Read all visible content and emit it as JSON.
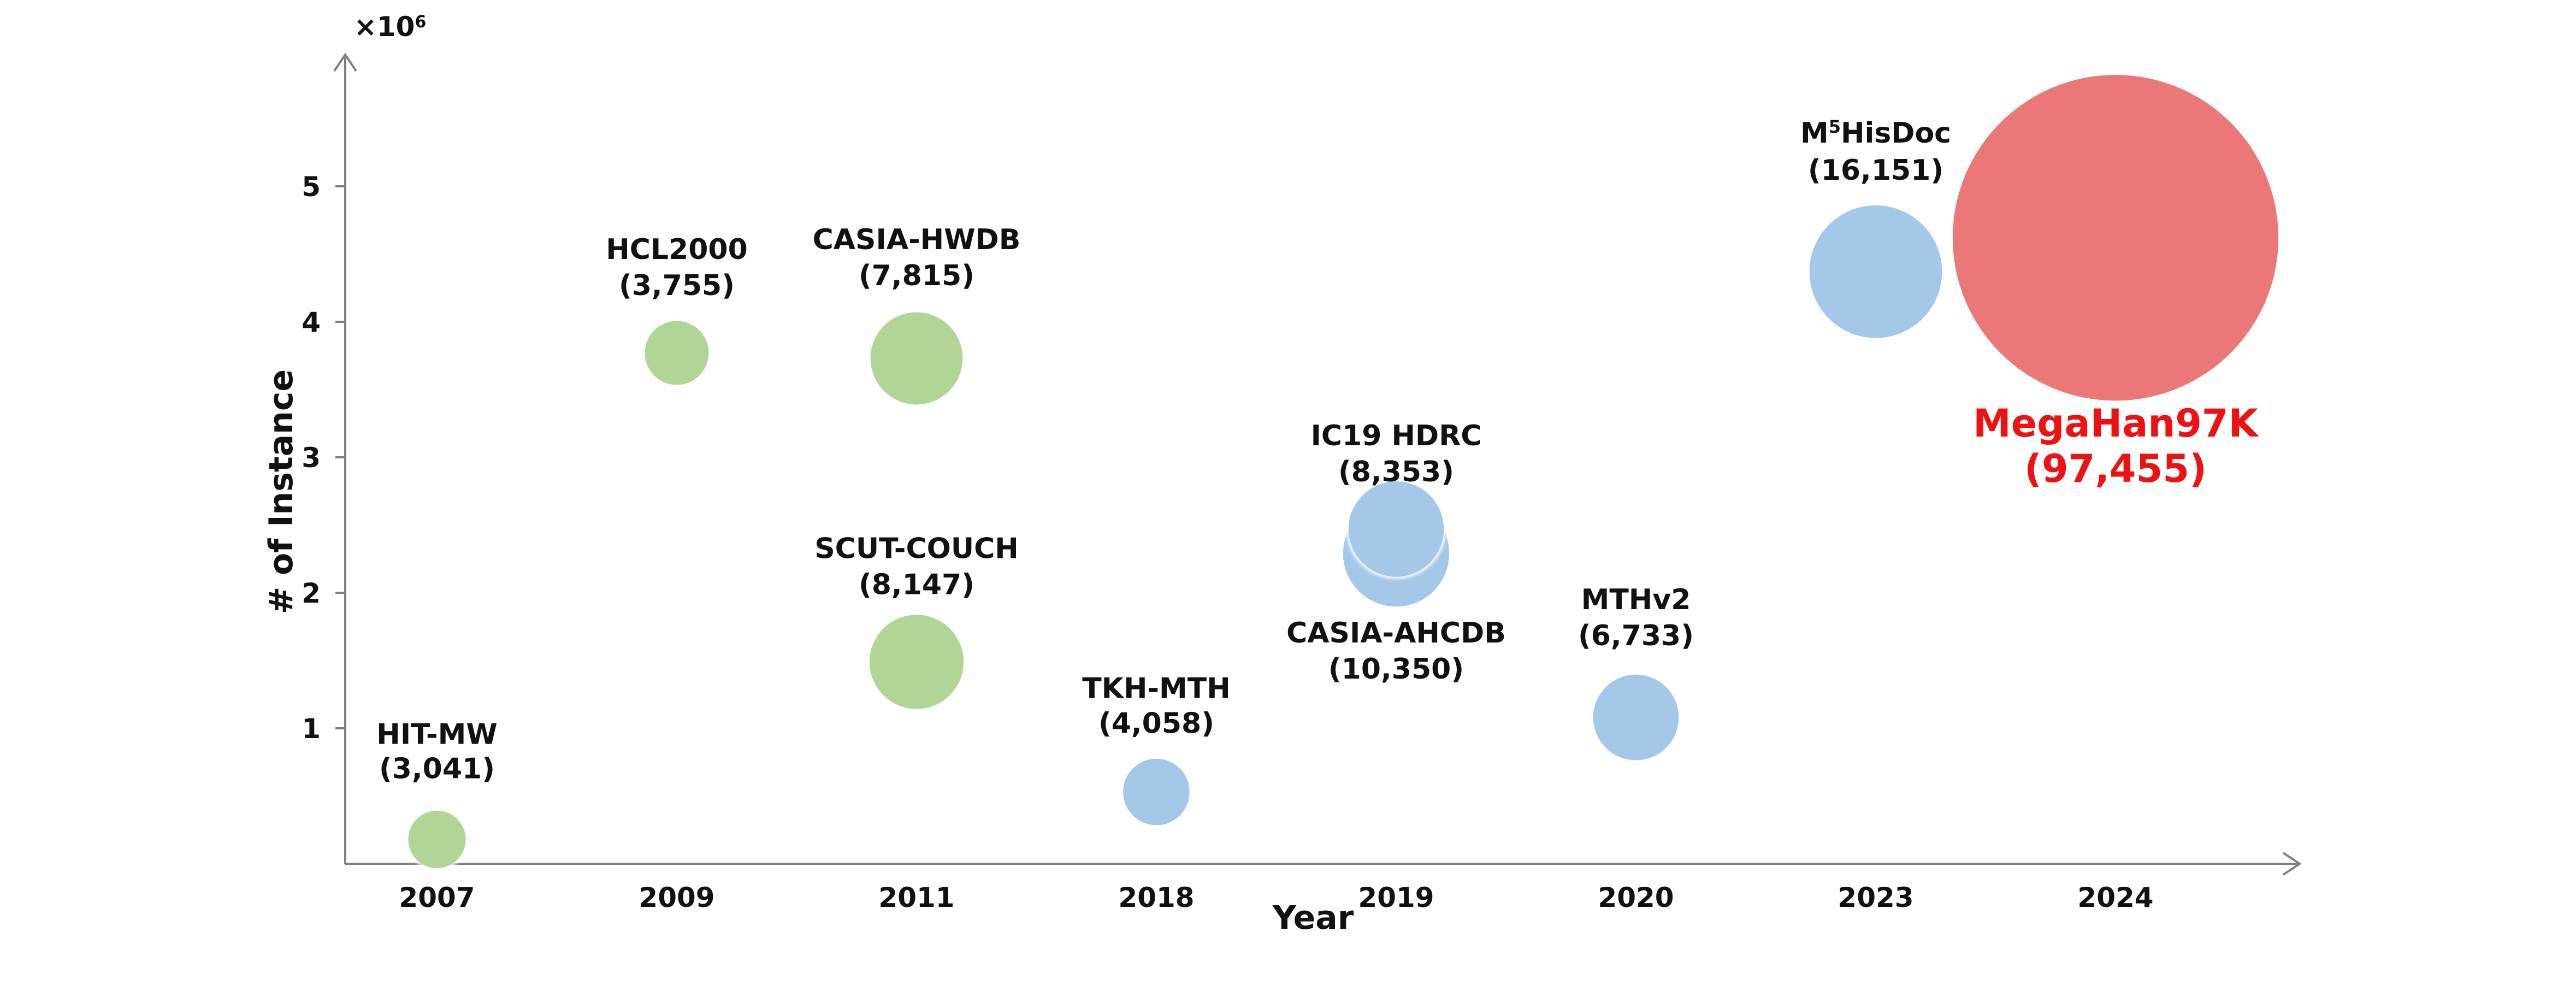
{
  "chart_data": {
    "type": "bubble",
    "xlabel": "Year",
    "ylabel": "# of Instance",
    "y_multiplier_label": "×10",
    "y_multiplier_exp": "6",
    "categories": [
      "2007",
      "2009",
      "2011",
      "2018",
      "2019",
      "2020",
      "2023",
      "2024"
    ],
    "y_ticks": [
      "1",
      "2",
      "3",
      "4",
      "5"
    ],
    "ylim": [
      0,
      6
    ],
    "grid": false,
    "colors": {
      "green": "#a9d18e",
      "blue": "#9dc3e6",
      "red": "#ea6b6e",
      "highlight_text": "#ee1111"
    },
    "points": [
      {
        "name": "HIT-MW",
        "value_label": "(3,041)",
        "category": "2007",
        "y": 0.18,
        "size": 3041,
        "color": "green"
      },
      {
        "name": "HCL2000",
        "value_label": "(3,755)",
        "category": "2009",
        "y": 3.77,
        "size": 3755,
        "color": "green"
      },
      {
        "name": "CASIA-HWDB",
        "value_label": "(7,815)",
        "category": "2011",
        "y": 3.73,
        "size": 7815,
        "color": "green"
      },
      {
        "name": "SCUT-COUCH",
        "value_label": "(8,147)",
        "category": "2011",
        "y": 1.49,
        "size": 8147,
        "color": "green"
      },
      {
        "name": "TKH-MTH",
        "value_label": "(4,058)",
        "category": "2018",
        "y": 0.53,
        "size": 4058,
        "color": "blue"
      },
      {
        "name": "CASIA-AHCDB",
        "value_label": "(10,350)",
        "category": "2019",
        "y": 2.29,
        "size": 10350,
        "color": "blue"
      },
      {
        "name": "IC19 HDRC",
        "value_label": "(8,353)",
        "category": "2019",
        "y": 2.47,
        "size": 8353,
        "color": "blue"
      },
      {
        "name": "MTHv2",
        "value_label": "(6,733)",
        "category": "2020",
        "y": 1.08,
        "size": 6733,
        "color": "blue"
      },
      {
        "name": "M",
        "name_sup": "5",
        "name_rest": "HisDoc",
        "value_label": "(16,151)",
        "category": "2023",
        "y": 4.37,
        "size": 16151,
        "color": "blue"
      },
      {
        "name": "MegaHan97K",
        "value_label": "(97,455)",
        "category": "2024",
        "y": 4.62,
        "size": 97455,
        "color": "red",
        "highlight": true
      }
    ]
  }
}
